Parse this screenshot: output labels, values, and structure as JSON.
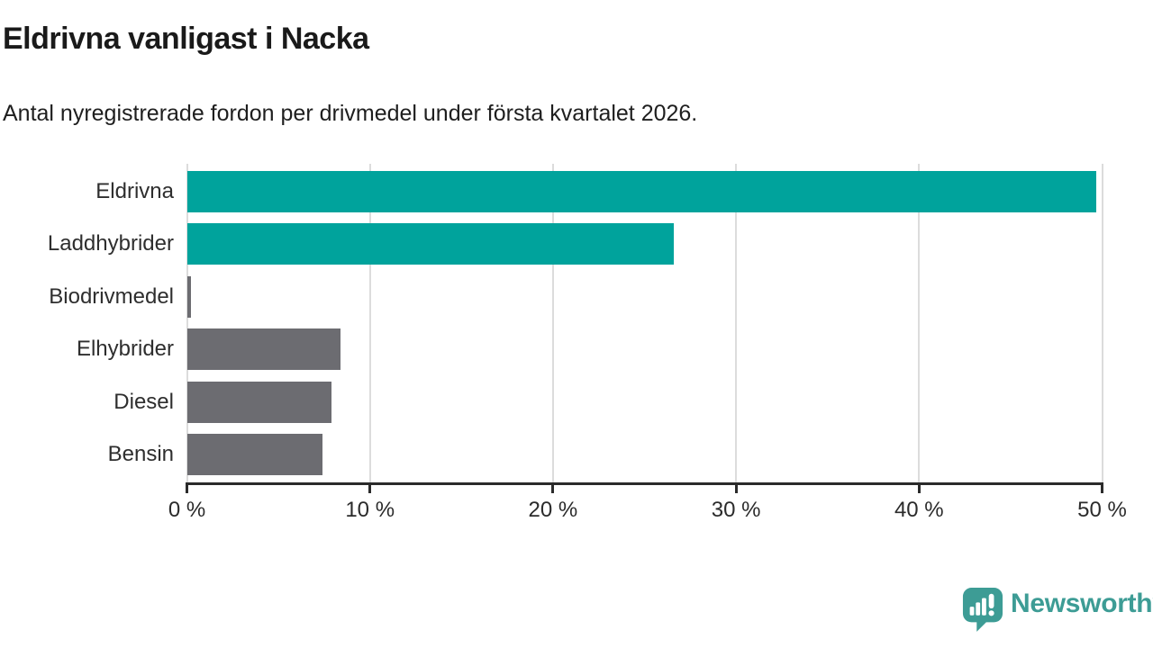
{
  "header": {
    "title": "Eldrivna vanligast i Nacka",
    "subtitle": "Antal nyregistrerade fordon per drivmedel under första kvartalet 2026."
  },
  "chart_data": {
    "type": "bar",
    "orientation": "horizontal",
    "title": "Eldrivna vanligast i Nacka",
    "subtitle": "Antal nyregistrerade fordon per drivmedel under första kvartalet 2026.",
    "categories": [
      "Eldrivna",
      "Laddhybrider",
      "Biodrivmedel",
      "Elhybrider",
      "Diesel",
      "Bensin"
    ],
    "values": [
      49.7,
      26.6,
      0.2,
      8.4,
      7.9,
      7.4
    ],
    "unit": "%",
    "xlim": [
      0,
      50
    ],
    "x_ticks": {
      "values": [
        0,
        10,
        20,
        30,
        40,
        50
      ],
      "labels": [
        "0 %",
        "10 %",
        "20 %",
        "30 %",
        "40 %",
        "50 %"
      ]
    },
    "grid": "vertical-gridlines-on",
    "legend": "none",
    "bar_colors": [
      "#00a39c",
      "#00a39c",
      "#6c6c71",
      "#6c6c71",
      "#6c6c71",
      "#6c6c71"
    ]
  },
  "colors": {
    "accent_teal": "#00a39c",
    "neutral_gray": "#6c6c71",
    "gridline": "#dcdcdc",
    "axis": "#2b2b2b",
    "title_text": "#1a1a1a",
    "logo_teal": "#3d9c95",
    "background": "#ffffff"
  },
  "footer": {
    "brand": "Newsworthy"
  }
}
